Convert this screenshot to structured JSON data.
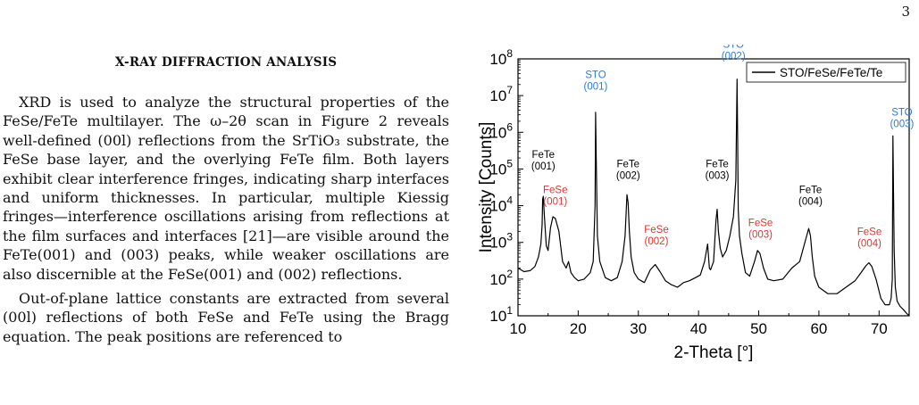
{
  "page": {
    "number": "3"
  },
  "section": {
    "title": "X-RAY DIFFRACTION ANALYSIS"
  },
  "paragraphs": [
    "XRD is used to analyze the structural properties of the FeSe/FeTe multilayer. The ω–2θ scan in Figure 2 reveals well-defined (00l) reflections from the SrTiO₃ substrate, the FeSe base layer, and the overlying FeTe film. Both layers exhibit clear interference fringes, indicating sharp interfaces and uniform thicknesses. In particular, multiple Kiessig fringes—interference oscillations arising from reflections at the film surfaces and interfaces [21]—are visible around the FeTe(001) and (003) peaks, while weaker oscillations are also discernible at the FeSe(001) and (002) reflections.",
    "Out-of-plane lattice constants are extracted from several (00l) reflections of both FeSe and FeTe using the Bragg equation. The peak positions are referenced to"
  ],
  "chart_data": {
    "type": "line",
    "xlabel": "2-Theta [°]",
    "ylabel": "Intensity [Counts]",
    "xlim": [
      10,
      75
    ],
    "ylim_log10": [
      1,
      8
    ],
    "yscale": "log",
    "grid": false,
    "legend": {
      "placement": "top-right",
      "entries": [
        "STO/FeSe/FeTe/Te"
      ]
    },
    "x_ticks": [
      "10",
      "20",
      "30",
      "40",
      "50",
      "60",
      "70"
    ],
    "y_ticks": [
      {
        "base": "10",
        "exp": "1"
      },
      {
        "base": "10",
        "exp": "2"
      },
      {
        "base": "10",
        "exp": "3"
      },
      {
        "base": "10",
        "exp": "4"
      },
      {
        "base": "10",
        "exp": "5"
      },
      {
        "base": "10",
        "exp": "6"
      },
      {
        "base": "10",
        "exp": "7"
      },
      {
        "base": "10",
        "exp": "8"
      }
    ],
    "series": [
      {
        "name": "STO/FeSe/FeTe/Te",
        "color": "#000000",
        "x": [
          10.0,
          11.0,
          12.0,
          12.8,
          13.4,
          13.8,
          14.0,
          14.1,
          14.2,
          14.4,
          14.7,
          15.0,
          15.4,
          15.8,
          16.2,
          16.8,
          17.4,
          18.0,
          18.4,
          18.8,
          19.4,
          20.0,
          21.0,
          22.0,
          22.5,
          22.8,
          22.9,
          23.0,
          23.2,
          23.6,
          24.5,
          25.5,
          26.5,
          27.3,
          27.8,
          28.1,
          28.3,
          28.5,
          28.8,
          29.3,
          30.0,
          31.0,
          32.0,
          32.8,
          33.6,
          34.5,
          35.5,
          36.5,
          37.5,
          38.5,
          39.5,
          40.3,
          41.0,
          41.5,
          41.8,
          42.0,
          42.5,
          42.9,
          43.1,
          43.3,
          43.6,
          44.0,
          44.6,
          45.2,
          45.8,
          46.2,
          46.4,
          46.5,
          46.6,
          46.8,
          47.2,
          47.8,
          48.5,
          49.3,
          49.8,
          50.2,
          50.8,
          51.5,
          52.5,
          54.0,
          55.5,
          56.8,
          57.8,
          58.3,
          58.6,
          58.9,
          59.3,
          60.0,
          61.5,
          63.0,
          64.5,
          66.0,
          67.0,
          67.8,
          68.3,
          68.8,
          69.5,
          70.3,
          71.0,
          71.7,
          72.0,
          72.2,
          72.3,
          72.4,
          72.5,
          72.7,
          73.0,
          73.5,
          74.0,
          74.5,
          75.0
        ],
        "y": [
          200,
          160,
          170,
          220,
          400,
          900,
          3000,
          15000,
          18000,
          5000,
          800,
          600,
          2500,
          5000,
          4500,
          2000,
          300,
          200,
          300,
          150,
          110,
          90,
          100,
          150,
          300,
          10000,
          3500000,
          200000,
          1500,
          300,
          110,
          90,
          110,
          300,
          1500,
          20000,
          12000,
          2000,
          400,
          150,
          100,
          80,
          180,
          250,
          160,
          90,
          70,
          60,
          80,
          90,
          110,
          130,
          300,
          900,
          200,
          180,
          300,
          4000,
          8000,
          2000,
          700,
          400,
          600,
          1500,
          5000,
          50000,
          28000000,
          500000,
          8000,
          1500,
          500,
          150,
          120,
          300,
          600,
          500,
          200,
          100,
          90,
          100,
          200,
          300,
          1200,
          2400,
          1500,
          400,
          120,
          60,
          40,
          40,
          60,
          90,
          150,
          230,
          280,
          220,
          100,
          30,
          20,
          20,
          30,
          100,
          800000,
          20000,
          600,
          60,
          25,
          18,
          15,
          12,
          10
        ]
      }
    ],
    "annotations": [
      {
        "lines": [
          "FeTe",
          "(001)"
        ],
        "x": 14.2,
        "y": 200000,
        "color": "#000000"
      },
      {
        "lines": [
          "FeSe",
          "(001)"
        ],
        "x": 16.2,
        "y": 22000,
        "color": "#e5322d"
      },
      {
        "lines": [
          "STO",
          "(001)"
        ],
        "x": 22.9,
        "y": 30000000,
        "color": "#2b7bd6"
      },
      {
        "lines": [
          "FeTe",
          "(002)"
        ],
        "x": 28.3,
        "y": 110000,
        "color": "#000000"
      },
      {
        "lines": [
          "FeSe",
          "(002)"
        ],
        "x": 33.0,
        "y": 1800,
        "color": "#e5322d"
      },
      {
        "lines": [
          "FeTe",
          "(003)"
        ],
        "x": 43.1,
        "y": 110000,
        "color": "#000000"
      },
      {
        "lines": [
          "STO",
          "(002)"
        ],
        "x": 45.8,
        "y": 200000000,
        "color": "#2b7bd6"
      },
      {
        "lines": [
          "FeSe",
          "(003)"
        ],
        "x": 50.3,
        "y": 2800,
        "color": "#e5322d"
      },
      {
        "lines": [
          "FeTe",
          "(004)"
        ],
        "x": 58.6,
        "y": 22000,
        "color": "#000000"
      },
      {
        "lines": [
          "FeSe",
          "(004)"
        ],
        "x": 68.4,
        "y": 1600,
        "color": "#e5322d"
      },
      {
        "lines": [
          "STO",
          "(003)"
        ],
        "x": 73.8,
        "y": 2900000,
        "color": "#2b7bd6"
      }
    ]
  }
}
